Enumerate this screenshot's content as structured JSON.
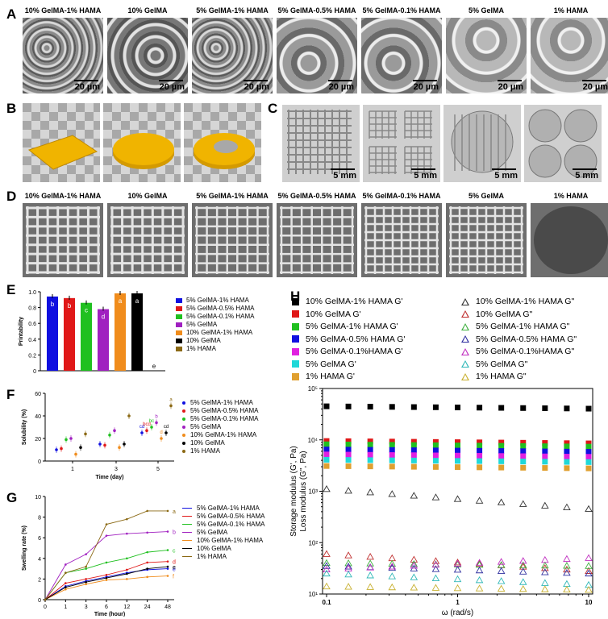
{
  "panels": {
    "A": "A",
    "B": "B",
    "C": "C",
    "D": "D",
    "E": "E",
    "F": "F",
    "G": "G",
    "H": "H"
  },
  "panelA": {
    "labels": [
      "10% GelMA-1% HAMA",
      "10% GelMA",
      "5% GelMA-1% HAMA",
      "5% GelMA-0.5% HAMA",
      "5% GelMA-0.1% HAMA",
      "5% GelMA",
      "1% HAMA"
    ],
    "scale": "20 µm"
  },
  "panelC": {
    "scale": "5 mm"
  },
  "panelD": {
    "labels": [
      "10% GelMA-1% HAMA",
      "10% GelMA",
      "5% GelMA-1% HAMA",
      "5% GelMA-0.5% HAMA",
      "5% GelMA-0.1% HAMA",
      "5% GelMA",
      "1% HAMA"
    ]
  },
  "colors": {
    "c1": "#1010e0",
    "c2": "#e01818",
    "c3": "#20c020",
    "c4": "#a020c0",
    "c5": "#f08c1c",
    "c6": "#000000",
    "c7": "#8b6914",
    "gold": "#f0b400"
  },
  "chart_data": [
    {
      "type": "bar",
      "panel": "E",
      "ylabel": "Printability",
      "ylim": [
        0,
        1.0
      ],
      "yticks": [
        "0",
        "0.2",
        "0.4",
        "0.6",
        "0.8",
        "1.0"
      ],
      "series": [
        {
          "name": "5% GelMA-1% HAMA",
          "value": 0.94,
          "letter": "b",
          "color": "#1010e0"
        },
        {
          "name": "5% GelMA-0.5% HAMA",
          "value": 0.92,
          "letter": "b",
          "color": "#e01818"
        },
        {
          "name": "5% GelMA-0.1% HAMA",
          "value": 0.86,
          "letter": "c",
          "color": "#20c020"
        },
        {
          "name": "5% GelMA",
          "value": 0.78,
          "letter": "d",
          "color": "#a020c0"
        },
        {
          "name": "10% GelMA-1% HAMA",
          "value": 0.98,
          "letter": "a",
          "color": "#f08c1c"
        },
        {
          "name": "10% GelMA",
          "value": 0.98,
          "letter": "a",
          "color": "#000000"
        },
        {
          "name": "1% HAMA",
          "value": 0,
          "letter": "e",
          "color": "#8b6914"
        }
      ]
    },
    {
      "type": "scatter",
      "panel": "F",
      "xlabel": "Time (day)",
      "ylabel": "Solubility (%)",
      "ylim": [
        0,
        60
      ],
      "yticks": [
        "0",
        "20",
        "40",
        "60"
      ],
      "xticks": [
        "1",
        "3",
        "5"
      ],
      "series": [
        {
          "name": "5% GelMA-1% HAMA",
          "color": "#1010e0",
          "values": [
            10,
            15,
            25
          ]
        },
        {
          "name": "5% GelMA-0.5% HAMA",
          "color": "#e01818",
          "values": [
            11,
            14,
            27
          ]
        },
        {
          "name": "5% GelMA-0.1% HAMA",
          "color": "#20c020",
          "values": [
            19,
            23,
            30
          ]
        },
        {
          "name": "5% GelMA",
          "color": "#a020c0",
          "values": [
            20,
            27,
            34
          ]
        },
        {
          "name": "10% GelMA-1% HAMA",
          "color": "#f08c1c",
          "values": [
            6,
            12,
            20
          ]
        },
        {
          "name": "10% GelMA",
          "color": "#000000",
          "values": [
            12,
            15,
            25
          ]
        },
        {
          "name": "1% HAMA",
          "color": "#8b6914",
          "values": [
            24,
            40,
            49
          ]
        }
      ],
      "letters": [
        "cd",
        "bcd",
        "bc",
        "b",
        "d",
        "cd",
        "a"
      ]
    },
    {
      "type": "line",
      "panel": "G",
      "xlabel": "Time (hour)",
      "ylabel": "Swelling rate (%)",
      "ylim": [
        0,
        10
      ],
      "yticks": [
        "0",
        "2",
        "4",
        "6",
        "8",
        "10"
      ],
      "x": [
        "0",
        "1",
        "3",
        "6",
        "12",
        "24",
        "48"
      ],
      "series": [
        {
          "name": "5% GelMA-1% HAMA",
          "color": "#1010e0",
          "values": [
            0,
            1.3,
            1.8,
            2.2,
            2.6,
            2.9,
            3.0
          ],
          "letter": "e"
        },
        {
          "name": "5% GelMA-0.5% HAMA",
          "color": "#e01818",
          "values": [
            0,
            1.6,
            2.0,
            2.4,
            2.9,
            3.6,
            3.7
          ],
          "letter": "d"
        },
        {
          "name": "5% GelMA-0.1% HAMA",
          "color": "#20c020",
          "values": [
            0,
            2.6,
            3.0,
            3.6,
            4.0,
            4.6,
            4.8
          ],
          "letter": "c"
        },
        {
          "name": "5% GelMA",
          "color": "#a020c0",
          "values": [
            0,
            3.4,
            4.4,
            6.2,
            6.4,
            6.5,
            6.6
          ],
          "letter": "b"
        },
        {
          "name": "10% GelMA-1% HAMA",
          "color": "#f08c1c",
          "values": [
            0,
            1.0,
            1.5,
            1.9,
            2.0,
            2.2,
            2.3
          ],
          "letter": "f"
        },
        {
          "name": "10% GelMA",
          "color": "#000000",
          "values": [
            0,
            1.2,
            1.7,
            2.1,
            2.5,
            3.0,
            3.2
          ],
          "letter": "e"
        },
        {
          "name": "1% HAMA",
          "color": "#8b6914",
          "values": [
            0,
            2.6,
            3.2,
            7.3,
            7.8,
            8.6,
            8.6
          ],
          "letter": "a"
        }
      ]
    },
    {
      "type": "scatter",
      "panel": "H",
      "xlabel": "ω (rad/s)",
      "ylabel": "Storage modulus (G', Pa)",
      "ylabel2": "Loss modulus (G\", Pa)",
      "xscale": "log",
      "yscale": "log",
      "xticks": [
        "0.1",
        "1",
        "10"
      ],
      "yticks": [
        "10¹",
        "10²",
        "10³",
        "10⁴",
        "10⁵"
      ],
      "storage": [
        {
          "name": "10% GelMA-1% HAMA G'",
          "color": "#000000",
          "value": 45000
        },
        {
          "name": "10% GelMA G'",
          "color": "#e01818",
          "value": 9500
        },
        {
          "name": "5% GelMA-1% HAMA G'",
          "color": "#20c020",
          "value": 8200
        },
        {
          "name": "5% GelMA-0.5% HAMA G'",
          "color": "#1010e0",
          "value": 6500
        },
        {
          "name": "5% GelMA-0.1%HAMA G'",
          "color": "#e020e0",
          "value": 5200
        },
        {
          "name": "5% GelMA G'",
          "color": "#20d8d8",
          "value": 4100
        },
        {
          "name": "1% HAMA G'",
          "color": "#e0a030",
          "value": 3100
        }
      ],
      "loss": [
        {
          "name": "10% GelMA-1% HAMA G\"",
          "color": "#333333",
          "start": 1100,
          "end": 450
        },
        {
          "name": "10% GelMA G\"",
          "color": "#c03030",
          "start": 60,
          "end": 28
        },
        {
          "name": "5% GelMA-1% HAMA G\"",
          "color": "#40b040",
          "start": 40,
          "end": 35
        },
        {
          "name": "5% GelMA-0.5% HAMA G\"",
          "color": "#3030a0",
          "start": 35,
          "end": 25
        },
        {
          "name": "5% GelMA-0.1%HAMA G\"",
          "color": "#c030c0",
          "start": 30,
          "end": 50
        },
        {
          "name": "5% GelMA G\"",
          "color": "#30b8b8",
          "start": 25,
          "end": 15
        },
        {
          "name": "1% HAMA G\"",
          "color": "#c8b030",
          "start": 14,
          "end": 12
        }
      ]
    }
  ]
}
